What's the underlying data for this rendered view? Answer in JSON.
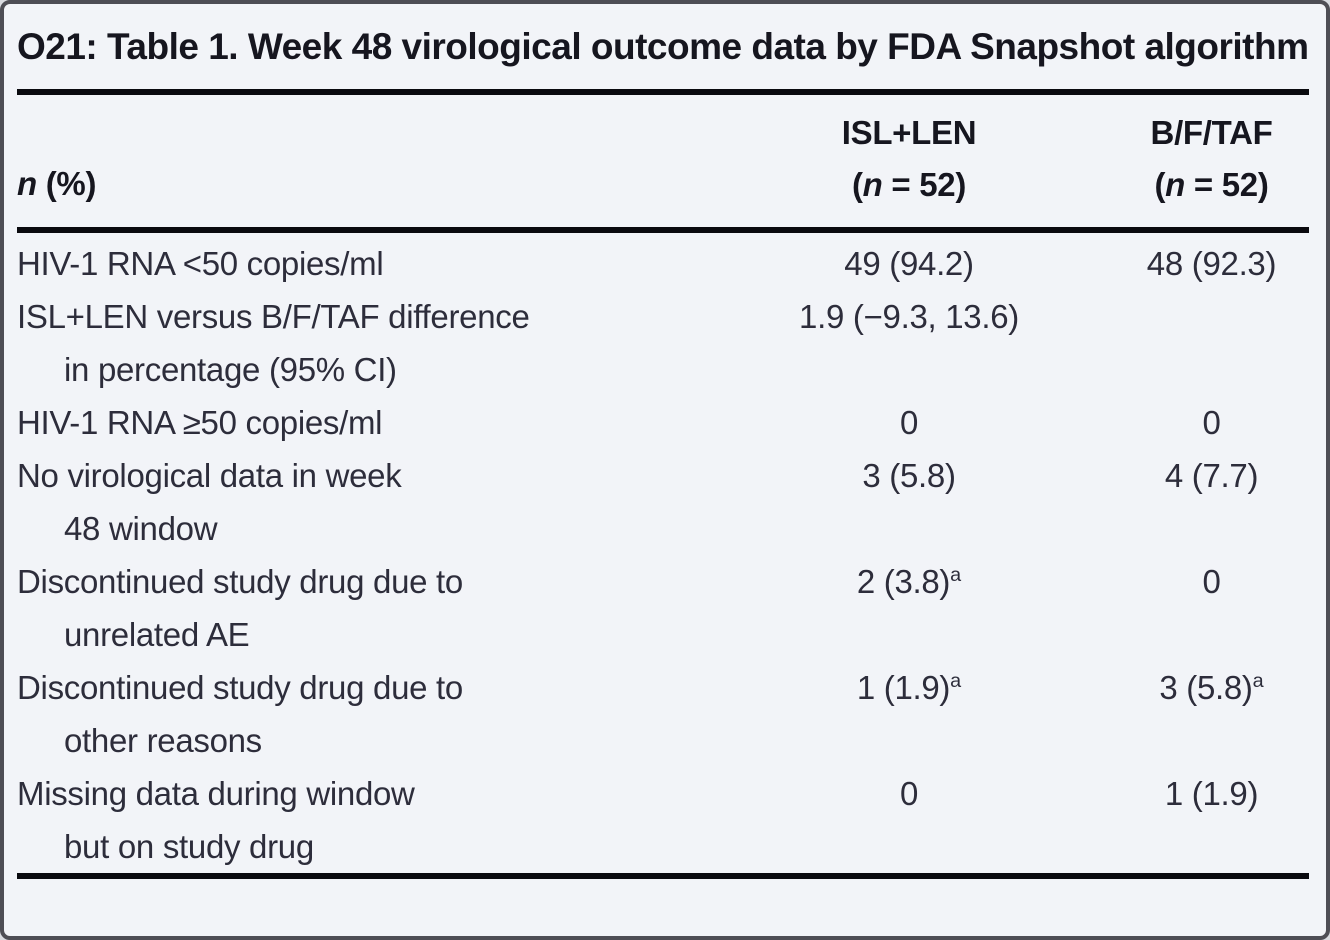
{
  "page": {
    "title": "O21: Table 1. Week 48 virological outcome data by FDA Snapshot algorithm"
  },
  "colors": {
    "background": "#f2f4f8",
    "text": "#2d2d3b",
    "title_text": "#16161f",
    "rule": "#0a0a0f",
    "frame_border": "#4e4e55"
  },
  "table": {
    "header": {
      "row_label_italic": "n",
      "row_label_rest": " (%)",
      "col2_line1": "ISL+LEN",
      "col2_paren_open": "(",
      "col2_n": "n",
      "col2_rest": " = 52)",
      "col3_line1": "B/F/TAF",
      "col3_paren_open": "(",
      "col3_n": "n",
      "col3_rest": " = 52)"
    },
    "rows": [
      {
        "label1": "HIV-1 RNA <50 copies/ml",
        "label2": "",
        "v1": "49 (94.2)",
        "v1sup": "",
        "v2": "48 (92.3)",
        "v2sup": ""
      },
      {
        "label1": "ISL+LEN versus B/F/TAF difference",
        "label2": "in percentage (95% CI)",
        "v1": "1.9 (−9.3, 13.6)",
        "v1sup": "",
        "v2": "",
        "v2sup": ""
      },
      {
        "label1": "HIV-1 RNA ≥50 copies/ml",
        "label2": "",
        "v1": "0",
        "v1sup": "",
        "v2": "0",
        "v2sup": ""
      },
      {
        "label1": "No virological data in week",
        "label2": "48 window",
        "v1": "3 (5.8)",
        "v1sup": "",
        "v2": "4 (7.7)",
        "v2sup": ""
      },
      {
        "label1": "Discontinued study drug due to",
        "label2": "unrelated AE",
        "v1": "2 (3.8)",
        "v1sup": "a",
        "v2": "0",
        "v2sup": ""
      },
      {
        "label1": "Discontinued study drug due to",
        "label2": "other reasons",
        "v1": "1 (1.9)",
        "v1sup": "a",
        "v2": "3 (5.8)",
        "v2sup": "a"
      },
      {
        "label1": "Missing data during window",
        "label2": "but on study drug",
        "v1": "0",
        "v1sup": "",
        "v2": "1 (1.9)",
        "v2sup": ""
      }
    ]
  }
}
